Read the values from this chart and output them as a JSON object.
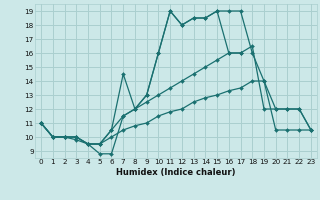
{
  "xlabel": "Humidex (Indice chaleur)",
  "bg_color": "#cce8e8",
  "grid_color": "#aacfcf",
  "line_color": "#1a7070",
  "xlim": [
    -0.5,
    23.5
  ],
  "ylim": [
    8.5,
    19.5
  ],
  "xticks": [
    0,
    1,
    2,
    3,
    4,
    5,
    6,
    7,
    8,
    9,
    10,
    11,
    12,
    13,
    14,
    15,
    16,
    17,
    18,
    19,
    20,
    21,
    22,
    23
  ],
  "yticks": [
    9,
    10,
    11,
    12,
    13,
    14,
    15,
    16,
    17,
    18,
    19
  ],
  "curve1_x": [
    0,
    1,
    2,
    3,
    4,
    5,
    6,
    7,
    8,
    9,
    10,
    11,
    12,
    13,
    14,
    15,
    16,
    17,
    18,
    19,
    20,
    21,
    22,
    23
  ],
  "curve1_y": [
    11,
    10,
    10,
    10,
    9.5,
    8.8,
    8.8,
    11.5,
    12,
    13,
    16,
    19,
    18,
    18.5,
    18.5,
    19,
    19,
    19,
    16,
    14,
    12,
    12,
    12,
    10.5
  ],
  "curve2_x": [
    0,
    1,
    2,
    3,
    4,
    5,
    6,
    7,
    8,
    9,
    10,
    11,
    12,
    13,
    14,
    15,
    16,
    17
  ],
  "curve2_y": [
    11,
    10,
    10,
    9.8,
    9.5,
    9.5,
    10.5,
    14.5,
    12,
    13,
    16,
    19,
    18,
    18.5,
    18.5,
    19,
    16,
    16
  ],
  "curve3_x": [
    0,
    1,
    2,
    3,
    4,
    5,
    6,
    7,
    8,
    9,
    10,
    11,
    12,
    13,
    14,
    15,
    16,
    17,
    18,
    19,
    20,
    21,
    22,
    23
  ],
  "curve3_y": [
    11,
    10,
    10,
    10,
    9.5,
    9.5,
    10.5,
    11.5,
    12,
    12.5,
    13,
    13.5,
    14,
    14.5,
    15,
    15.5,
    16,
    16,
    16.5,
    12,
    12,
    12,
    12,
    10.5
  ],
  "curve4_x": [
    0,
    1,
    2,
    3,
    4,
    5,
    6,
    7,
    8,
    9,
    10,
    11,
    12,
    13,
    14,
    15,
    16,
    17,
    18,
    19,
    20,
    21,
    22,
    23
  ],
  "curve4_y": [
    11,
    10,
    10,
    10,
    9.5,
    9.5,
    10,
    10.5,
    10.8,
    11,
    11.5,
    11.8,
    12,
    12.5,
    12.8,
    13,
    13.3,
    13.5,
    14,
    14,
    10.5,
    10.5,
    10.5,
    10.5
  ]
}
